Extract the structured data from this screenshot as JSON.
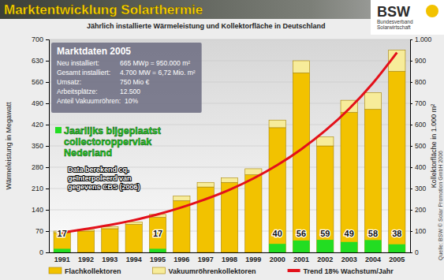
{
  "chart_data": {
    "type": "bar",
    "title": "Marktentwicklung Solarthermie",
    "subtitle": "Jährlich installierte Wärmeleistung und Kollektorfläche in Deutschland",
    "logo": {
      "text": "BSW",
      "subtitle": "Bundesverband Solarwirtschaft"
    },
    "y_label": "Wärmeleistung in Megawatt",
    "y2_label": "Kollektorfläche in 1.000 m²",
    "source": "Quelle: BSW © Solar Promotion GmbH 2006",
    "info_box": {
      "title": "Marktdaten 2005",
      "rows": [
        [
          "Neu installiert:",
          "665 MWp = 950.000 m²"
        ],
        [
          "Gesamt installiert:",
          "4.700 MW = 6,72 Mio. m²"
        ],
        [
          "Umsatz:",
          "750 Mio €"
        ],
        [
          "Arbeitsplätze:",
          "12.500"
        ],
        [
          "Anteil Vakuumröhren:",
          "10%"
        ]
      ]
    },
    "notes": [
      "Data berekend cq. geïnterpoleerd van gegevens CBS (2006)"
    ],
    "categories": [
      "1991",
      "1992",
      "1993",
      "1994",
      "1995",
      "1996",
      "1997",
      "1998",
      "1999",
      "2000",
      "2001",
      "2002",
      "2003",
      "2004",
      "2005"
    ],
    "stacked": true,
    "grid": true,
    "legend": "bottom",
    "ylim": [
      0,
      700
    ],
    "yticks": [
      0,
      70,
      140,
      210,
      280,
      350,
      420,
      490,
      560,
      630,
      700
    ],
    "y2lim": [
      0,
      1000
    ],
    "y2ticks": [
      0,
      100,
      200,
      300,
      400,
      500,
      600,
      700,
      800,
      900,
      {
        "value": 1000,
        "label": "1.000"
      }
    ],
    "series": [
      {
        "name": "Flachkollektoren",
        "type": "bar",
        "color": "#f2c200",
        "values": [
          65,
          70,
          78,
          92,
          115,
          170,
          215,
          230,
          255,
          410,
          590,
          350,
          460,
          470,
          595
        ]
      },
      {
        "name": "Vakuumröhrenkollektoren",
        "type": "bar",
        "color": "#f7ec9a",
        "values": [
          5,
          5,
          7,
          8,
          10,
          15,
          15,
          15,
          20,
          25,
          40,
          30,
          40,
          55,
          70
        ]
      },
      {
        "name": "Trend 18% Wachstum/Jahr",
        "type": "line",
        "color": "#e3101a",
        "values": [
          65,
          77,
          90,
          106,
          125,
          148,
          175,
          206,
          243,
          287,
          339,
          400,
          472,
          557,
          657
        ]
      },
      {
        "name": "Jaarlijks bijgeplaatst collectoroppervlak Nederland",
        "type": "bar",
        "axis": "y2",
        "color": "#22dd22",
        "data_labels": true,
        "values": [
          17,
          null,
          null,
          null,
          17,
          null,
          null,
          null,
          null,
          40,
          56,
          59,
          49,
          58,
          38
        ]
      }
    ]
  }
}
